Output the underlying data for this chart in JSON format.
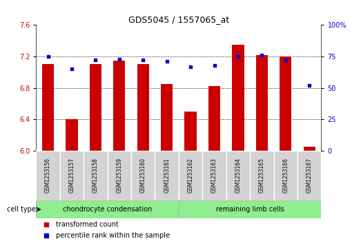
{
  "title": "GDS5045 / 1557065_at",
  "samples": [
    "GSM1253156",
    "GSM1253157",
    "GSM1253158",
    "GSM1253159",
    "GSM1253160",
    "GSM1253161",
    "GSM1253162",
    "GSM1253163",
    "GSM1253164",
    "GSM1253165",
    "GSM1253166",
    "GSM1253167"
  ],
  "red_values": [
    7.1,
    6.4,
    7.1,
    7.15,
    7.1,
    6.85,
    6.5,
    6.82,
    7.35,
    7.22,
    7.2,
    6.05
  ],
  "blue_values": [
    75,
    65,
    72,
    73,
    72,
    71,
    67,
    68,
    75,
    76,
    72,
    52
  ],
  "ylim_left": [
    6.0,
    7.6
  ],
  "ylim_right": [
    0,
    100
  ],
  "yticks_left": [
    6.0,
    6.4,
    6.8,
    7.2,
    7.6
  ],
  "yticks_right": [
    0,
    25,
    50,
    75,
    100
  ],
  "bar_color": "#cc0000",
  "dot_color": "#0000cc",
  "bar_width": 0.5,
  "group1_label": "chondrocyte condensation",
  "group2_label": "remaining limb cells",
  "group1_count": 6,
  "group2_count": 6,
  "group_color": "#90ee90",
  "cell_type_label": "cell type",
  "legend_red": "transformed count",
  "legend_blue": "percentile rank within the sample",
  "sample_cell_color": "#d3d3d3",
  "title_fontsize": 9,
  "tick_fontsize": 7,
  "label_fontsize": 7,
  "legend_fontsize": 7
}
